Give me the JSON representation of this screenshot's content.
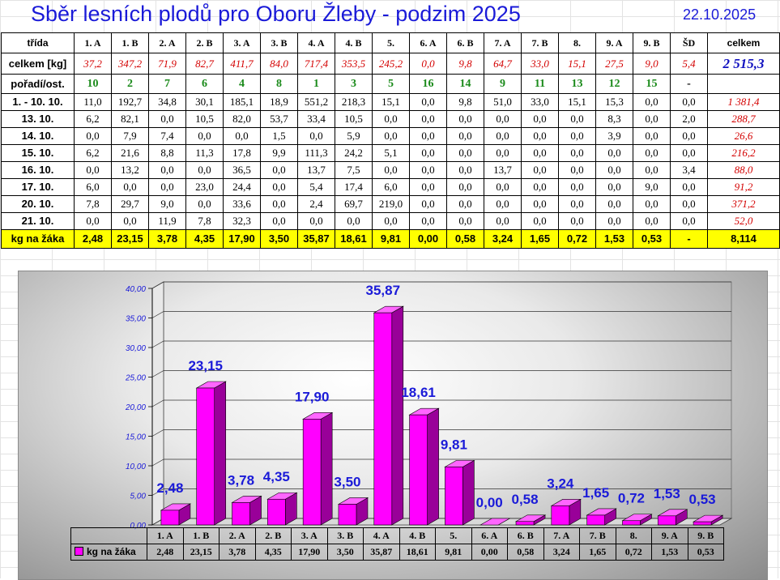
{
  "title": "Sběr lesních plodů pro Oboru Žleby - podzim 2025",
  "date": "22.10.2025",
  "table": {
    "header_label": "třída",
    "classes": [
      "1. A",
      "1. B",
      "2. A",
      "2. B",
      "3. A",
      "3. B",
      "4. A",
      "4. B",
      "5.",
      "6. A",
      "6. B",
      "7. A",
      "7. B",
      "8.",
      "9. A",
      "9. B",
      "ŠD"
    ],
    "total_header": "celkem",
    "celkem_label": "celkem [kg]",
    "celkem": [
      "37,2",
      "347,2",
      "71,9",
      "82,7",
      "411,7",
      "84,0",
      "717,4",
      "353,5",
      "245,2",
      "0,0",
      "9,8",
      "64,7",
      "33,0",
      "15,1",
      "27,5",
      "9,0",
      "5,4"
    ],
    "celkem_total": "2 515,3",
    "poradi_label": "pořadí/ost.",
    "poradi": [
      "10",
      "2",
      "7",
      "6",
      "4",
      "8",
      "1",
      "3",
      "5",
      "16",
      "14",
      "9",
      "11",
      "13",
      "12",
      "15",
      "-"
    ],
    "days": [
      {
        "label": "1. - 10. 10.",
        "values": [
          "11,0",
          "192,7",
          "34,8",
          "30,1",
          "185,1",
          "18,9",
          "551,2",
          "218,3",
          "15,1",
          "0,0",
          "9,8",
          "51,0",
          "33,0",
          "15,1",
          "15,3",
          "0,0",
          "0,0"
        ],
        "total": "1 381,4"
      },
      {
        "label": "13. 10.",
        "values": [
          "6,2",
          "82,1",
          "0,0",
          "10,5",
          "82,0",
          "53,7",
          "33,4",
          "10,5",
          "0,0",
          "0,0",
          "0,0",
          "0,0",
          "0,0",
          "0,0",
          "8,3",
          "0,0",
          "2,0"
        ],
        "total": "288,7"
      },
      {
        "label": "14. 10.",
        "values": [
          "0,0",
          "7,9",
          "7,4",
          "0,0",
          "0,0",
          "1,5",
          "0,0",
          "5,9",
          "0,0",
          "0,0",
          "0,0",
          "0,0",
          "0,0",
          "0,0",
          "3,9",
          "0,0",
          "0,0"
        ],
        "total": "26,6"
      },
      {
        "label": "15. 10.",
        "values": [
          "6,2",
          "21,6",
          "8,8",
          "11,3",
          "17,8",
          "9,9",
          "111,3",
          "24,2",
          "5,1",
          "0,0",
          "0,0",
          "0,0",
          "0,0",
          "0,0",
          "0,0",
          "0,0",
          "0,0"
        ],
        "total": "216,2"
      },
      {
        "label": "16. 10.",
        "values": [
          "0,0",
          "13,2",
          "0,0",
          "0,0",
          "36,5",
          "0,0",
          "13,7",
          "7,5",
          "0,0",
          "0,0",
          "0,0",
          "13,7",
          "0,0",
          "0,0",
          "0,0",
          "0,0",
          "3,4"
        ],
        "total": "88,0"
      },
      {
        "label": "17. 10.",
        "values": [
          "6,0",
          "0,0",
          "0,0",
          "23,0",
          "24,4",
          "0,0",
          "5,4",
          "17,4",
          "6,0",
          "0,0",
          "0,0",
          "0,0",
          "0,0",
          "0,0",
          "0,0",
          "9,0",
          "0,0"
        ],
        "total": "91,2"
      },
      {
        "label": "20. 10.",
        "values": [
          "7,8",
          "29,7",
          "9,0",
          "0,0",
          "33,6",
          "0,0",
          "2,4",
          "69,7",
          "219,0",
          "0,0",
          "0,0",
          "0,0",
          "0,0",
          "0,0",
          "0,0",
          "0,0",
          "0,0"
        ],
        "total": "371,2"
      },
      {
        "label": "21. 10.",
        "values": [
          "0,0",
          "0,0",
          "11,9",
          "7,8",
          "32,3",
          "0,0",
          "0,0",
          "0,0",
          "0,0",
          "0,0",
          "0,0",
          "0,0",
          "0,0",
          "0,0",
          "0,0",
          "0,0",
          "0,0"
        ],
        "total": "52,0"
      }
    ],
    "kg_label": "kg na žáka",
    "kg": [
      "2,48",
      "23,15",
      "3,78",
      "4,35",
      "17,90",
      "3,50",
      "35,87",
      "18,61",
      "9,81",
      "0,00",
      "0,58",
      "3,24",
      "1,65",
      "0,72",
      "1,53",
      "0,53",
      "-"
    ],
    "kg_total": "8,114"
  },
  "chart_data": {
    "type": "bar",
    "categories": [
      "1. A",
      "1. B",
      "2. A",
      "2. B",
      "3. A",
      "3. B",
      "4. A",
      "4. B",
      "5.",
      "6. A",
      "6. B",
      "7. A",
      "7. B",
      "8.",
      "9. A",
      "9. B"
    ],
    "series": [
      {
        "name": "kg na žáka",
        "values": [
          2.48,
          23.15,
          3.78,
          4.35,
          17.9,
          3.5,
          35.87,
          18.61,
          9.81,
          0.0,
          0.58,
          3.24,
          1.65,
          0.72,
          1.53,
          0.53
        ]
      }
    ],
    "value_labels": [
      "2,48",
      "23,15",
      "3,78",
      "4,35",
      "17,90",
      "3,50",
      "35,87",
      "18,61",
      "9,81",
      "0,00",
      "0,58",
      "3,24",
      "1,65",
      "0,72",
      "1,53",
      "0,53"
    ],
    "yticks": [
      "0,00",
      "5,00",
      "10,00",
      "15,00",
      "20,00",
      "25,00",
      "30,00",
      "35,00",
      "40,00"
    ],
    "ylim": [
      0,
      40
    ],
    "bar_color": "#ff00ff",
    "label_color": "#1a1ad8",
    "legend_placement": "data-table",
    "grid": true
  }
}
